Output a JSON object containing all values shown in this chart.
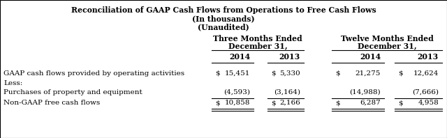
{
  "title_line1": "Reconciliation of GAAP Cash Flows from Operations to Free Cash Flows",
  "title_line2": "(In thousands)",
  "title_line3": "(Unaudited)",
  "col_header1_line1": "Three Months Ended",
  "col_header1_line2": "December 31,",
  "col_header2_line1": "Twelve Months Ended",
  "col_header2_line2": "December 31,",
  "year_headers": [
    "2014",
    "2013",
    "2014",
    "2013"
  ],
  "rows": [
    {
      "label": "GAAP cash flows provided by operating activities",
      "dollar_signs": [
        true,
        true,
        true,
        true
      ],
      "values": [
        "15,451",
        "5,330",
        "21,275",
        "12,624"
      ],
      "top_line": false,
      "bottom_line": false,
      "double_bottom": false
    },
    {
      "label": "Less:",
      "dollar_signs": [
        false,
        false,
        false,
        false
      ],
      "values": [
        "",
        "",
        "",
        ""
      ],
      "top_line": false,
      "bottom_line": false,
      "double_bottom": false
    },
    {
      "label": "Purchases of property and equipment",
      "dollar_signs": [
        false,
        false,
        false,
        false
      ],
      "values": [
        "(4,593)",
        "(3,164)",
        "(14,988)",
        "(7,666)"
      ],
      "top_line": false,
      "bottom_line": true,
      "double_bottom": false
    },
    {
      "label": "Non-GAAP free cash flows",
      "dollar_signs": [
        true,
        true,
        true,
        true
      ],
      "values": [
        "10,858",
        "2,166",
        "6,287",
        "4,958"
      ],
      "top_line": false,
      "bottom_line": true,
      "double_bottom": true
    }
  ],
  "background_color": "#ffffff",
  "font_color": "#000000",
  "title_fontsize": 7.8,
  "header_fontsize": 7.8,
  "data_fontsize": 7.5,
  "fig_width": 6.4,
  "fig_height": 1.98,
  "dpi": 100
}
